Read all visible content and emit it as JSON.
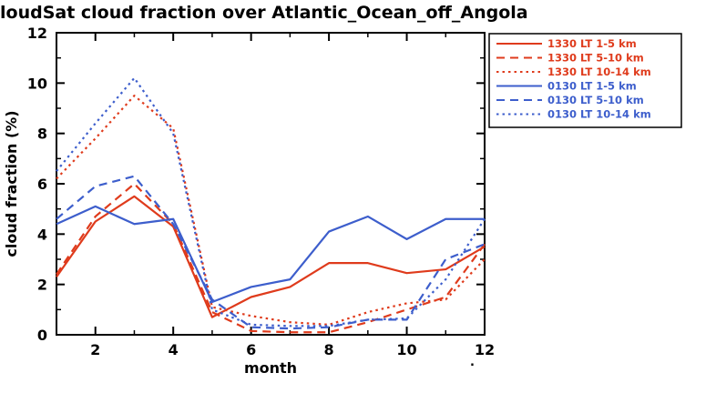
{
  "chart_data": {
    "type": "line",
    "title": "loudSat cloud fraction over Atlantic_Ocean_off_Angola",
    "xlabel": "month",
    "ylabel": "cloud fraction (%)",
    "xlim": [
      1,
      12
    ],
    "ylim": [
      0,
      12
    ],
    "x": [
      1,
      2,
      3,
      4,
      5,
      6,
      7,
      8,
      9,
      10,
      11,
      12
    ],
    "x_major_ticks": [
      2,
      4,
      6,
      8,
      10,
      12
    ],
    "x_minor_ticks": [
      1,
      3,
      5,
      7,
      9,
      11
    ],
    "y_major_ticks": [
      0,
      2,
      4,
      6,
      8,
      10,
      12
    ],
    "y_minor_ticks": [
      1,
      3,
      5,
      7,
      9,
      11
    ],
    "grid": false,
    "legend_position": "top-right",
    "colors": {
      "day_red": "#df3b1c",
      "night_blue": "#3d5ecc",
      "axis": "#000000",
      "background": "#ffffff"
    },
    "series": [
      {
        "name": "1330 LT 1-5 km",
        "color": "#df3b1c",
        "style": "solid",
        "values": [
          2.3,
          4.5,
          5.5,
          4.3,
          0.7,
          1.5,
          1.9,
          2.85,
          2.85,
          2.45,
          2.6,
          3.5
        ]
      },
      {
        "name": "1330 LT 5-10 km",
        "color": "#df3b1c",
        "style": "dashed",
        "values": [
          2.4,
          4.7,
          6.0,
          4.4,
          0.9,
          0.15,
          0.1,
          0.1,
          0.5,
          1.0,
          1.5,
          3.6
        ]
      },
      {
        "name": "1330 LT 10-14 km",
        "color": "#df3b1c",
        "style": "dotted",
        "values": [
          6.2,
          7.8,
          9.5,
          8.2,
          1.1,
          0.75,
          0.5,
          0.4,
          0.9,
          1.25,
          1.4,
          3.0
        ]
      },
      {
        "name": "0130 LT 1-5 km",
        "color": "#3d5ecc",
        "style": "solid",
        "values": [
          4.4,
          5.1,
          4.4,
          4.6,
          1.3,
          1.9,
          2.2,
          4.1,
          4.7,
          3.8,
          4.6,
          4.6
        ]
      },
      {
        "name": "0130 LT 5-10 km",
        "color": "#3d5ecc",
        "style": "dashed",
        "values": [
          4.6,
          5.9,
          6.3,
          4.4,
          1.4,
          0.3,
          0.25,
          0.3,
          0.6,
          0.6,
          3.0,
          3.6
        ]
      },
      {
        "name": "0130 LT 10-14 km",
        "color": "#3d5ecc",
        "style": "dotted",
        "values": [
          6.5,
          8.4,
          10.2,
          8.0,
          1.0,
          0.4,
          0.35,
          0.35,
          0.6,
          0.65,
          2.2,
          4.6
        ]
      }
    ],
    "stray_mark": "."
  }
}
